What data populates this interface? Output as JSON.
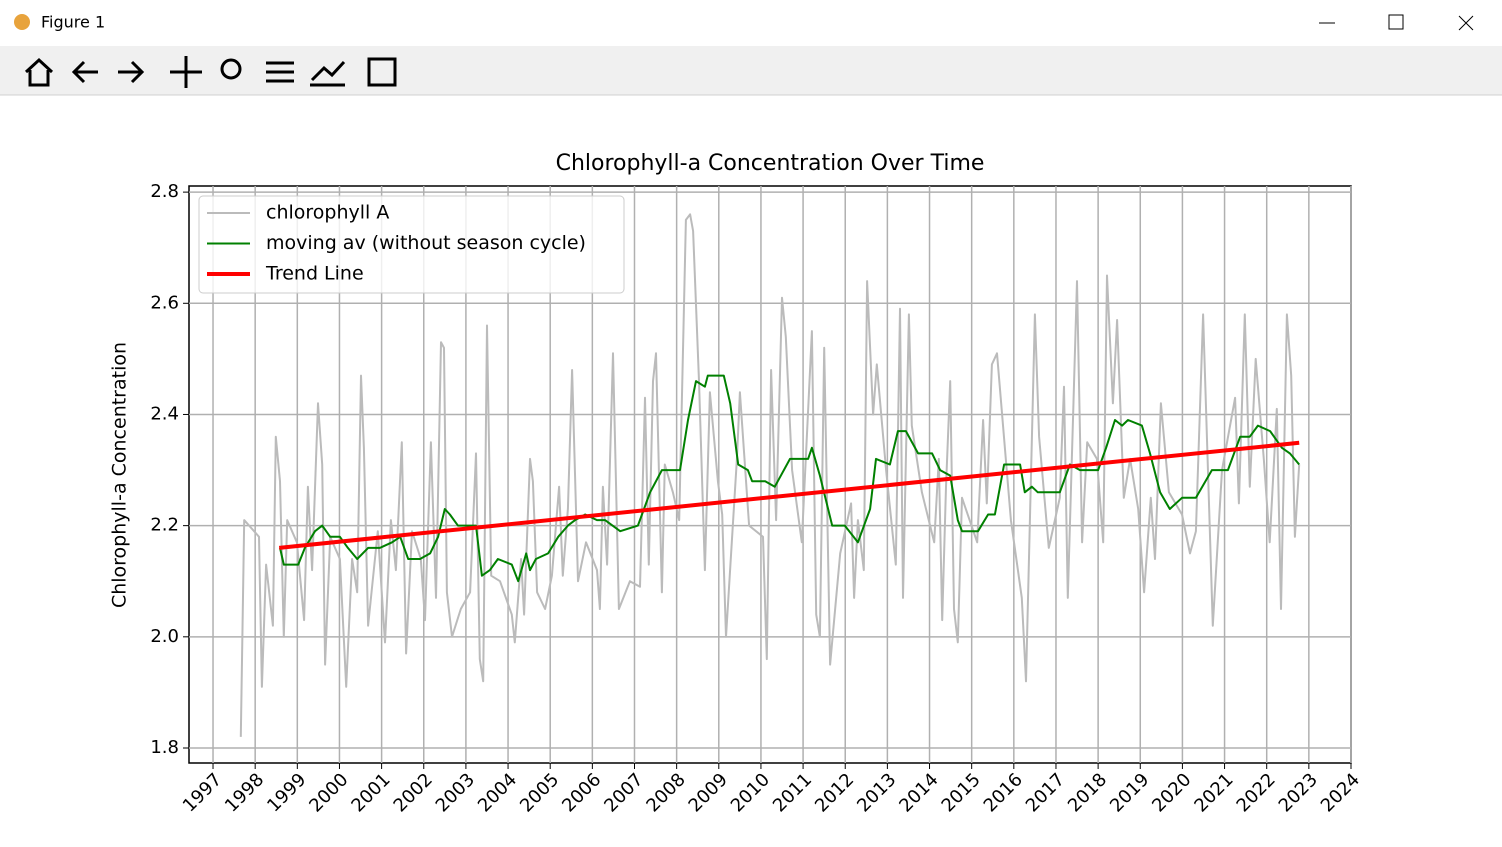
{
  "window_title": "Figure 1",
  "chart_data": {
    "type": "line",
    "title": "Chlorophyll-a Concentration Over Time",
    "y_label": "Chlorophyll-a Concentration",
    "xlim": [
      1996.43,
      2024
    ],
    "xticks": [
      1997,
      1998,
      1999,
      2000,
      2001,
      2002,
      2003,
      2004,
      2005,
      2006,
      2007,
      2008,
      2009,
      2010,
      2011,
      2012,
      2013,
      2014,
      2015,
      2016,
      2017,
      2018,
      2019,
      2020,
      2021,
      2022,
      2023,
      2024
    ],
    "ylim": [
      1.773,
      2.811
    ],
    "yticks": [
      1.8,
      {
        "value": 2,
        "label": "2.0"
      },
      2.2,
      2.4,
      2.6,
      2.8
    ],
    "grid": true,
    "legend": "upper left",
    "series": [
      {
        "name": "chlorophyll A",
        "color": "#bbbbbb",
        "width": 2,
        "x": [
          1997.66,
          1997.74,
          1998.09,
          1998.16,
          1998.26,
          1998.42,
          1998.49,
          1998.59,
          1998.68,
          1998.76,
          1998.99,
          1999.16,
          1999.25,
          1999.35,
          1999.49,
          1999.59,
          1999.66,
          1999.78,
          2000.01,
          2000.16,
          2000.3,
          2000.42,
          2000.51,
          2000.58,
          2000.68,
          2000.91,
          2001.08,
          2001.22,
          2001.34,
          2001.48,
          2001.58,
          2001.72,
          2001.93,
          2002.03,
          2002.17,
          2002.29,
          2002.41,
          2002.48,
          2002.55,
          2002.67,
          2002.88,
          2003.1,
          2003.24,
          2003.33,
          2003.41,
          2003.5,
          2003.6,
          2003.81,
          2004.09,
          2004.16,
          2004.31,
          2004.38,
          2004.52,
          2004.59,
          2004.69,
          2004.88,
          2005.04,
          2005.21,
          2005.3,
          2005.42,
          2005.52,
          2005.66,
          2005.85,
          2006.11,
          2006.18,
          2006.25,
          2006.35,
          2006.49,
          2006.63,
          2006.89,
          2007.13,
          2007.25,
          2007.34,
          2007.44,
          2007.51,
          2007.65,
          2007.72,
          2007.91,
          2008.06,
          2008.22,
          2008.32,
          2008.39,
          2008.53,
          2008.67,
          2008.79,
          2008.98,
          2009.08,
          2009.17,
          2009.43,
          2009.5,
          2009.72,
          2010.05,
          2010.14,
          2010.24,
          2010.36,
          2010.5,
          2010.59,
          2010.74,
          2010.97,
          2011.21,
          2011.31,
          2011.4,
          2011.5,
          2011.64,
          2011.88,
          2012.14,
          2012.21,
          2012.3,
          2012.44,
          2012.52,
          2012.66,
          2012.75,
          2012.97,
          2013.2,
          2013.3,
          2013.37,
          2013.51,
          2013.58,
          2013.82,
          2014.11,
          2014.22,
          2014.3,
          2014.39,
          2014.49,
          2014.58,
          2014.67,
          2014.77,
          2015.13,
          2015.27,
          2015.36,
          2015.48,
          2015.6,
          2015.93,
          2016.19,
          2016.29,
          2016.5,
          2016.6,
          2016.83,
          2017.09,
          2017.19,
          2017.28,
          2017.5,
          2017.62,
          2017.74,
          2017.97,
          2018.12,
          2018.21,
          2018.35,
          2018.45,
          2018.61,
          2018.76,
          2018.95,
          2019.09,
          2019.25,
          2019.35,
          2019.49,
          2019.68,
          2019.99,
          2020.18,
          2020.32,
          2020.49,
          2020.72,
          2020.94,
          2021.25,
          2021.34,
          2021.48,
          2021.6,
          2021.74,
          2021.93,
          2022.07,
          2022.24,
          2022.34,
          2022.48,
          2022.58,
          2022.67,
          2022.77
        ],
        "values": [
          1.82,
          2.21,
          2.18,
          1.91,
          2.13,
          2.02,
          2.36,
          2.28,
          2.0,
          2.21,
          2.17,
          2.03,
          2.27,
          2.12,
          2.42,
          2.31,
          1.95,
          2.18,
          2.14,
          1.91,
          2.14,
          2.08,
          2.47,
          2.34,
          2.02,
          2.19,
          1.99,
          2.21,
          2.12,
          2.35,
          1.97,
          2.19,
          2.14,
          2.03,
          2.35,
          2.07,
          2.53,
          2.52,
          2.08,
          2.0,
          2.05,
          2.08,
          2.33,
          1.96,
          1.92,
          2.56,
          2.11,
          2.1,
          2.04,
          1.99,
          2.14,
          2.04,
          2.32,
          2.28,
          2.08,
          2.05,
          2.11,
          2.27,
          2.11,
          2.23,
          2.48,
          2.1,
          2.17,
          2.12,
          2.05,
          2.27,
          2.13,
          2.51,
          2.05,
          2.1,
          2.09,
          2.43,
          2.13,
          2.46,
          2.51,
          2.08,
          2.31,
          2.26,
          2.21,
          2.75,
          2.76,
          2.73,
          2.46,
          2.12,
          2.44,
          2.28,
          2.22,
          2.0,
          2.32,
          2.44,
          2.2,
          2.18,
          1.96,
          2.48,
          2.21,
          2.61,
          2.54,
          2.3,
          2.17,
          2.55,
          2.04,
          2.0,
          2.52,
          1.95,
          2.15,
          2.24,
          2.07,
          2.21,
          2.12,
          2.64,
          2.4,
          2.49,
          2.3,
          2.13,
          2.59,
          2.07,
          2.58,
          2.38,
          2.26,
          2.17,
          2.32,
          2.03,
          2.27,
          2.46,
          2.05,
          1.99,
          2.25,
          2.17,
          2.39,
          2.24,
          2.49,
          2.51,
          2.21,
          2.07,
          1.92,
          2.58,
          2.36,
          2.16,
          2.25,
          2.45,
          2.07,
          2.64,
          2.17,
          2.35,
          2.32,
          2.17,
          2.65,
          2.42,
          2.57,
          2.25,
          2.32,
          2.23,
          2.08,
          2.25,
          2.14,
          2.42,
          2.26,
          2.22,
          2.15,
          2.19,
          2.58,
          2.02,
          2.3,
          2.43,
          2.24,
          2.58,
          2.27,
          2.5,
          2.32,
          2.17,
          2.41,
          2.05,
          2.58,
          2.47,
          2.18,
          2.31
        ]
      },
      {
        "name": "moving av (without season cycle)",
        "color": "#008000",
        "width": 2,
        "x": [
          1998.59,
          1998.68,
          1999.02,
          1999.18,
          1999.42,
          1999.59,
          1999.78,
          2000.01,
          2000.2,
          2000.42,
          2000.68,
          2000.96,
          2001.25,
          2001.44,
          2001.63,
          2001.91,
          2002.15,
          2002.34,
          2002.5,
          2002.62,
          2002.81,
          2003.05,
          2003.24,
          2003.38,
          2003.57,
          2003.76,
          2004.09,
          2004.24,
          2004.43,
          2004.52,
          2004.66,
          2004.95,
          2005.19,
          2005.42,
          2005.59,
          2005.83,
          2006.11,
          2006.3,
          2006.66,
          2007.08,
          2007.37,
          2007.65,
          2008.08,
          2008.27,
          2008.46,
          2008.67,
          2008.74,
          2009.12,
          2009.27,
          2009.46,
          2009.69,
          2009.79,
          2010.1,
          2010.33,
          2010.69,
          2011.12,
          2011.21,
          2011.4,
          2011.69,
          2011.99,
          2012.3,
          2012.59,
          2012.73,
          2013.06,
          2013.25,
          2013.44,
          2013.73,
          2014.06,
          2014.25,
          2014.49,
          2014.67,
          2014.77,
          2015.15,
          2015.39,
          2015.55,
          2015.77,
          2016.15,
          2016.26,
          2016.43,
          2016.57,
          2016.76,
          2017.09,
          2017.33,
          2017.57,
          2018.0,
          2018.19,
          2018.4,
          2018.57,
          2018.71,
          2019.04,
          2019.23,
          2019.47,
          2019.7,
          2019.99,
          2020.32,
          2020.7,
          2021.08,
          2021.37,
          2021.6,
          2021.79,
          2022.08,
          2022.36,
          2022.55,
          2022.77
        ],
        "values": [
          2.16,
          2.13,
          2.13,
          2.16,
          2.19,
          2.2,
          2.18,
          2.18,
          2.16,
          2.14,
          2.16,
          2.16,
          2.17,
          2.18,
          2.14,
          2.14,
          2.15,
          2.18,
          2.23,
          2.22,
          2.2,
          2.2,
          2.2,
          2.11,
          2.12,
          2.14,
          2.13,
          2.1,
          2.15,
          2.12,
          2.14,
          2.15,
          2.18,
          2.2,
          2.21,
          2.22,
          2.21,
          2.21,
          2.19,
          2.2,
          2.26,
          2.3,
          2.3,
          2.39,
          2.46,
          2.45,
          2.47,
          2.47,
          2.42,
          2.31,
          2.3,
          2.28,
          2.28,
          2.27,
          2.32,
          2.32,
          2.34,
          2.29,
          2.2,
          2.2,
          2.17,
          2.23,
          2.32,
          2.31,
          2.37,
          2.37,
          2.33,
          2.33,
          2.3,
          2.29,
          2.21,
          2.19,
          2.19,
          2.22,
          2.22,
          2.31,
          2.31,
          2.26,
          2.27,
          2.26,
          2.26,
          2.26,
          2.31,
          2.3,
          2.3,
          2.34,
          2.39,
          2.38,
          2.39,
          2.38,
          2.33,
          2.26,
          2.23,
          2.25,
          2.25,
          2.3,
          2.3,
          2.36,
          2.36,
          2.38,
          2.37,
          2.34,
          2.33,
          2.31
        ]
      },
      {
        "name": "Trend Line",
        "color": "#ff0000",
        "width": 4,
        "x": [
          1998.57,
          2022.77
        ],
        "values": [
          2.16,
          2.349
        ]
      }
    ]
  }
}
